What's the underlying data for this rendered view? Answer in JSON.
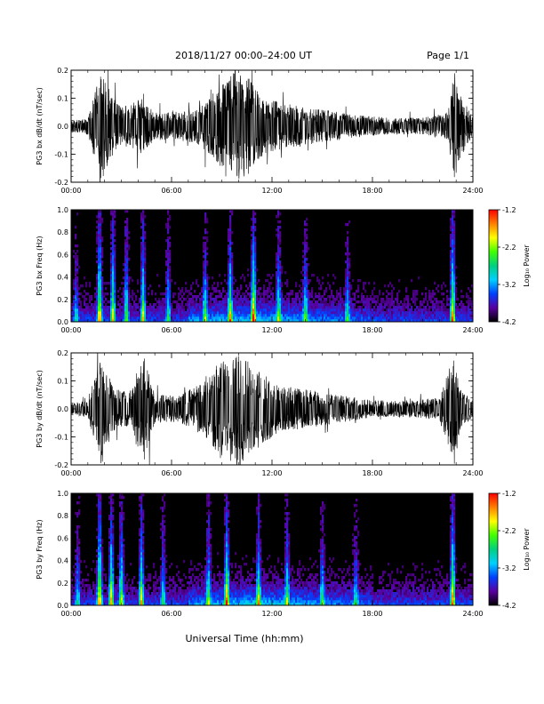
{
  "header": {
    "title": "2018/11/27  00:00–24:00 UT",
    "page": "Page 1/1"
  },
  "xaxis": {
    "ticks": [
      "00:00",
      "06:00",
      "12:00",
      "18:00",
      "24:00"
    ],
    "label": "Universal Time (hh:mm)"
  },
  "chart_data": [
    {
      "type": "line",
      "ylabel": "PG3 bx dB/dt (nT/sec)",
      "ylim": [
        -0.2,
        0.2
      ],
      "yticks": [
        "0.2",
        "0.1",
        "0.0",
        "-0.1",
        "-0.2"
      ],
      "ytick_values": [
        0.2,
        0.1,
        0.0,
        -0.1,
        -0.2
      ],
      "xlim_hours": [
        0,
        24
      ],
      "series": [
        {
          "values": "dense waveform",
          "color": "#000000"
        }
      ],
      "amplitude_envelope": [
        {
          "hour": 0.0,
          "amp": 0.02
        },
        {
          "hour": 1.0,
          "amp": 0.03
        },
        {
          "hour": 1.8,
          "amp": 0.2
        },
        {
          "hour": 2.5,
          "amp": 0.1
        },
        {
          "hour": 3.0,
          "amp": 0.07
        },
        {
          "hour": 4.2,
          "amp": 0.1
        },
        {
          "hour": 5.0,
          "amp": 0.05
        },
        {
          "hour": 6.0,
          "amp": 0.05
        },
        {
          "hour": 7.5,
          "amp": 0.06
        },
        {
          "hour": 8.5,
          "amp": 0.12
        },
        {
          "hour": 9.5,
          "amp": 0.2
        },
        {
          "hour": 10.5,
          "amp": 0.18
        },
        {
          "hour": 11.5,
          "amp": 0.1
        },
        {
          "hour": 13.0,
          "amp": 0.08
        },
        {
          "hour": 15.0,
          "amp": 0.06
        },
        {
          "hour": 17.0,
          "amp": 0.04
        },
        {
          "hour": 19.0,
          "amp": 0.03
        },
        {
          "hour": 21.0,
          "amp": 0.03
        },
        {
          "hour": 22.5,
          "amp": 0.05
        },
        {
          "hour": 22.9,
          "amp": 0.2
        },
        {
          "hour": 23.2,
          "amp": 0.12
        },
        {
          "hour": 24.0,
          "amp": 0.03
        }
      ]
    },
    {
      "type": "heatmap",
      "ylabel": "PG3 bx Freq (Hz)",
      "ylim": [
        0.0,
        1.0
      ],
      "yticks": [
        "1.0",
        "0.8",
        "0.6",
        "0.4",
        "0.2",
        "0.0"
      ],
      "ytick_values": [
        1.0,
        0.8,
        0.6,
        0.4,
        0.2,
        0.0
      ],
      "xlim_hours": [
        0,
        24
      ],
      "colorbar": {
        "label": "Log₁₀ Power",
        "range": [
          -4.2,
          -1.2
        ],
        "ticks": [
          "-1.2",
          "-2.2",
          "-3.2",
          "-4.2"
        ],
        "tick_values": [
          -1.2,
          -2.2,
          -3.2,
          -4.2
        ],
        "colormap": [
          "#000000",
          "#5a00a0",
          "#0040ff",
          "#00d0ff",
          "#00d080",
          "#40ff00",
          "#ffff00",
          "#ff8000",
          "#ff0000"
        ]
      },
      "activity_hours": [
        {
          "hour": 0.3,
          "level": 0.35
        },
        {
          "hour": 1.7,
          "level": 0.95
        },
        {
          "hour": 2.5,
          "level": 0.75
        },
        {
          "hour": 3.3,
          "level": 0.6
        },
        {
          "hour": 4.3,
          "level": 0.7
        },
        {
          "hour": 5.8,
          "level": 0.45
        },
        {
          "hour": 8.0,
          "level": 0.5
        },
        {
          "hour": 9.5,
          "level": 0.7
        },
        {
          "hour": 10.9,
          "level": 0.9
        },
        {
          "hour": 12.4,
          "level": 0.55
        },
        {
          "hour": 14.0,
          "level": 0.5
        },
        {
          "hour": 16.5,
          "level": 0.4
        },
        {
          "hour": 22.8,
          "level": 0.9
        }
      ]
    },
    {
      "type": "line",
      "ylabel": "PG3 by dB/dt (nT/sec)",
      "ylim": [
        -0.2,
        0.2
      ],
      "yticks": [
        "0.2",
        "0.1",
        "0.0",
        "-0.1",
        "-0.2"
      ],
      "ytick_values": [
        0.2,
        0.1,
        0.0,
        -0.1,
        -0.2
      ],
      "xlim_hours": [
        0,
        24
      ],
      "series": [
        {
          "values": "dense waveform",
          "color": "#000000"
        }
      ],
      "amplitude_envelope": [
        {
          "hour": 0.0,
          "amp": 0.02
        },
        {
          "hour": 1.0,
          "amp": 0.03
        },
        {
          "hour": 1.8,
          "amp": 0.2
        },
        {
          "hour": 2.5,
          "amp": 0.08
        },
        {
          "hour": 3.5,
          "amp": 0.06
        },
        {
          "hour": 4.3,
          "amp": 0.2
        },
        {
          "hour": 5.0,
          "amp": 0.05
        },
        {
          "hour": 6.5,
          "amp": 0.05
        },
        {
          "hour": 8.0,
          "amp": 0.1
        },
        {
          "hour": 9.2,
          "amp": 0.2
        },
        {
          "hour": 10.0,
          "amp": 0.2
        },
        {
          "hour": 11.0,
          "amp": 0.15
        },
        {
          "hour": 12.5,
          "amp": 0.08
        },
        {
          "hour": 14.0,
          "amp": 0.07
        },
        {
          "hour": 16.0,
          "amp": 0.05
        },
        {
          "hour": 18.0,
          "amp": 0.03
        },
        {
          "hour": 20.0,
          "amp": 0.03
        },
        {
          "hour": 22.0,
          "amp": 0.04
        },
        {
          "hour": 22.9,
          "amp": 0.2
        },
        {
          "hour": 23.3,
          "amp": 0.07
        },
        {
          "hour": 24.0,
          "amp": 0.03
        }
      ]
    },
    {
      "type": "heatmap",
      "ylabel": "PG3 by Freq (Hz)",
      "ylim": [
        0.0,
        1.0
      ],
      "yticks": [
        "1.0",
        "0.8",
        "0.6",
        "0.4",
        "0.2",
        "0.0"
      ],
      "ytick_values": [
        1.0,
        0.8,
        0.6,
        0.4,
        0.2,
        0.0
      ],
      "xlim_hours": [
        0,
        24
      ],
      "colorbar": {
        "label": "Log₁₀ Power",
        "range": [
          -4.2,
          -1.2
        ],
        "ticks": [
          "-1.2",
          "-2.2",
          "-3.2",
          "-4.2"
        ],
        "tick_values": [
          -1.2,
          -2.2,
          -3.2,
          -4.2
        ],
        "colormap": [
          "#000000",
          "#5a00a0",
          "#0040ff",
          "#00d0ff",
          "#00d080",
          "#40ff00",
          "#ffff00",
          "#ff8000",
          "#ff0000"
        ]
      },
      "activity_hours": [
        {
          "hour": 0.4,
          "level": 0.4
        },
        {
          "hour": 1.7,
          "level": 0.95
        },
        {
          "hour": 2.4,
          "level": 0.8
        },
        {
          "hour": 3.0,
          "level": 0.7
        },
        {
          "hour": 4.2,
          "level": 0.75
        },
        {
          "hour": 5.5,
          "level": 0.45
        },
        {
          "hour": 8.2,
          "level": 0.55
        },
        {
          "hour": 9.3,
          "level": 0.8
        },
        {
          "hour": 11.2,
          "level": 0.6
        },
        {
          "hour": 12.9,
          "level": 0.5
        },
        {
          "hour": 15.0,
          "level": 0.45
        },
        {
          "hour": 17.0,
          "level": 0.4
        },
        {
          "hour": 22.8,
          "level": 0.95
        }
      ]
    }
  ]
}
